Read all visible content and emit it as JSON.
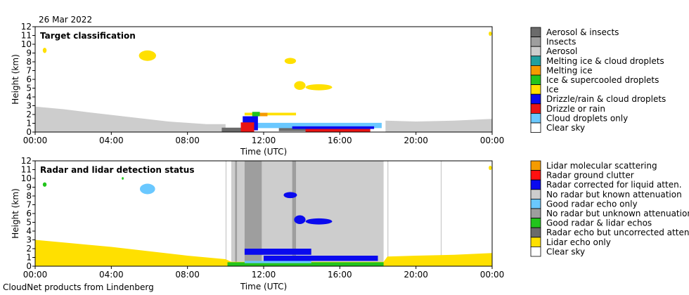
{
  "date_label": "26 Mar 2022",
  "footer": "CloudNet products from Lindenberg",
  "colors": {
    "aerosol_insects": "#6b6b6b",
    "insects": "#9e9e9e",
    "aerosol": "#cdcdcd",
    "melting_ice_cloud": "#20a0a0",
    "melting_ice": "#f49b00",
    "ice_supercooled": "#22c41c",
    "ice": "#ffe000",
    "drizzle_cloud": "#0a0aee",
    "drizzle_rain": "#e81414",
    "cloud_droplets": "#6ac8ff",
    "clear": "#ffffff",
    "lidar_molecular": "#f49b00",
    "radar_ground_clutter": "#ff1010",
    "radar_corrected": "#0a0aee",
    "no_radar_known": "#cdcdcd",
    "good_radar_only": "#6ac8ff",
    "no_radar_unknown": "#9e9e9e",
    "good_radar_lidar": "#22c41c",
    "radar_uncorrected": "#6b6b6b",
    "lidar_only": "#ffe000"
  },
  "chart_data": [
    {
      "type": "heatmap",
      "title": "Target classification",
      "xlabel": "Time (UTC)",
      "ylabel": "Height (km)",
      "xlim": [
        0,
        24
      ],
      "ylim": [
        0,
        12
      ],
      "x_ticks": [
        "00:00",
        "04:00",
        "08:00",
        "12:00",
        "16:00",
        "20:00",
        "00:00"
      ],
      "y_ticks": [
        "0",
        "1",
        "2",
        "3",
        "4",
        "5",
        "6",
        "7",
        "8",
        "9",
        "10",
        "11",
        "12"
      ],
      "legend": [
        {
          "label": "Aerosol & insects",
          "color_key": "aerosol_insects"
        },
        {
          "label": "Insects",
          "color_key": "insects"
        },
        {
          "label": "Aerosol",
          "color_key": "aerosol"
        },
        {
          "label": "Melting ice & cloud droplets",
          "color_key": "melting_ice_cloud"
        },
        {
          "label": "Melting ice",
          "color_key": "melting_ice"
        },
        {
          "label": "Ice & supercooled droplets",
          "color_key": "ice_supercooled"
        },
        {
          "label": "Ice",
          "color_key": "ice"
        },
        {
          "label": "Drizzle/rain & cloud droplets",
          "color_key": "drizzle_cloud"
        },
        {
          "label": "Drizzle or rain",
          "color_key": "drizzle_rain"
        },
        {
          "label": "Cloud droplets only",
          "color_key": "cloud_droplets"
        },
        {
          "label": "Clear sky",
          "color_key": "clear"
        }
      ],
      "regions": [
        {
          "color_key": "aerosol",
          "shape": "poly",
          "points": [
            [
              0,
              0
            ],
            [
              0,
              2.9
            ],
            [
              1.5,
              2.6
            ],
            [
              3,
              2.2
            ],
            [
              5,
              1.7
            ],
            [
              7,
              1.2
            ],
            [
              9,
              0.9
            ],
            [
              10,
              0.9
            ],
            [
              10,
              0
            ],
            [
              0,
              0
            ]
          ]
        },
        {
          "color_key": "aerosol",
          "shape": "poly",
          "points": [
            [
              18.4,
              0
            ],
            [
              18.4,
              1.3
            ],
            [
              20,
              1.2
            ],
            [
              22,
              1.3
            ],
            [
              24,
              1.5
            ],
            [
              24,
              0
            ],
            [
              18.4,
              0
            ]
          ]
        },
        {
          "color_key": "aerosol_insects",
          "shape": "rect",
          "t0": 9.8,
          "t1": 11.2,
          "h0": 0,
          "h1": 0.5
        },
        {
          "color_key": "aerosol_insects",
          "shape": "rect",
          "t0": 12.8,
          "t1": 14.8,
          "h0": 0.1,
          "h1": 0.6
        },
        {
          "color_key": "cloud_droplets",
          "shape": "rect",
          "t0": 11.0,
          "t1": 18.2,
          "h0": 0.45,
          "h1": 1.05
        },
        {
          "color_key": "drizzle_cloud",
          "shape": "rect",
          "t0": 10.9,
          "t1": 11.7,
          "h0": 0.2,
          "h1": 1.8
        },
        {
          "color_key": "drizzle_rain",
          "shape": "rect",
          "t0": 10.8,
          "t1": 11.5,
          "h0": 0,
          "h1": 1.1
        },
        {
          "color_key": "drizzle_rain",
          "shape": "rect",
          "t0": 14.2,
          "t1": 17.6,
          "h0": 0,
          "h1": 0.45
        },
        {
          "color_key": "drizzle_cloud",
          "shape": "rect",
          "t0": 13.5,
          "t1": 17.8,
          "h0": 0.35,
          "h1": 0.65
        },
        {
          "color_key": "ice",
          "shape": "rect",
          "t0": 11.0,
          "t1": 13.7,
          "h0": 1.9,
          "h1": 2.2
        },
        {
          "color_key": "ice_supercooled",
          "shape": "rect",
          "t0": 11.4,
          "t1": 11.8,
          "h0": 1.8,
          "h1": 2.3
        },
        {
          "color_key": "melting_ice",
          "shape": "rect",
          "t0": 11.8,
          "t1": 12.2,
          "h0": 1.8,
          "h1": 2.2
        },
        {
          "color_key": "ice",
          "shape": "ellipse",
          "t": 5.9,
          "h": 8.7,
          "rt": 0.45,
          "rh": 0.6
        },
        {
          "color_key": "ice",
          "shape": "ellipse",
          "t": 13.4,
          "h": 8.1,
          "rt": 0.3,
          "rh": 0.35
        },
        {
          "color_key": "ice",
          "shape": "ellipse",
          "t": 13.9,
          "h": 5.3,
          "rt": 0.3,
          "rh": 0.5
        },
        {
          "color_key": "ice",
          "shape": "ellipse",
          "t": 14.9,
          "h": 5.1,
          "rt": 0.7,
          "rh": 0.35
        },
        {
          "color_key": "ice",
          "shape": "ellipse",
          "t": 0.5,
          "h": 9.3,
          "rt": 0.1,
          "rh": 0.3
        },
        {
          "color_key": "ice",
          "shape": "ellipse",
          "t": 23.9,
          "h": 11.2,
          "rt": 0.08,
          "rh": 0.25
        }
      ]
    },
    {
      "type": "heatmap",
      "title": "Radar and lidar detection status",
      "xlabel": "Time (UTC)",
      "ylabel": "Height (km)",
      "xlim": [
        0,
        24
      ],
      "ylim": [
        0,
        12
      ],
      "x_ticks": [
        "00:00",
        "04:00",
        "08:00",
        "12:00",
        "16:00",
        "20:00",
        "00:00"
      ],
      "y_ticks": [
        "0",
        "1",
        "2",
        "3",
        "4",
        "5",
        "6",
        "7",
        "8",
        "9",
        "10",
        "11",
        "12"
      ],
      "legend": [
        {
          "label": "Lidar molecular scattering",
          "color_key": "lidar_molecular"
        },
        {
          "label": "Radar ground clutter",
          "color_key": "radar_ground_clutter"
        },
        {
          "label": "Radar corrected for liquid atten.",
          "color_key": "radar_corrected"
        },
        {
          "label": "No radar but known attenuation",
          "color_key": "no_radar_known"
        },
        {
          "label": "Good radar echo only",
          "color_key": "good_radar_only"
        },
        {
          "label": "No radar but unknown attenuation",
          "color_key": "no_radar_unknown"
        },
        {
          "label": "Good radar & lidar echos",
          "color_key": "good_radar_lidar"
        },
        {
          "label": "Radar echo but uncorrected atten.",
          "color_key": "radar_uncorrected"
        },
        {
          "label": "Lidar echo only",
          "color_key": "lidar_only"
        },
        {
          "label": "Clear sky",
          "color_key": "clear"
        }
      ],
      "regions": [
        {
          "color_key": "no_radar_known",
          "shape": "rect",
          "t0": 10.3,
          "t1": 18.3,
          "h0": 0.5,
          "h1": 12
        },
        {
          "color_key": "no_radar_unknown",
          "shape": "rect",
          "t0": 11.0,
          "t1": 11.9,
          "h0": 0.5,
          "h1": 12
        },
        {
          "color_key": "no_radar_unknown",
          "shape": "rect",
          "t0": 13.5,
          "t1": 13.7,
          "h0": 0.5,
          "h1": 12
        },
        {
          "color_key": "no_radar_unknown",
          "shape": "rect",
          "t0": 10.5,
          "t1": 10.6,
          "h0": 0.5,
          "h1": 12
        },
        {
          "color_key": "no_radar_known",
          "shape": "rect",
          "t0": 10.0,
          "t1": 10.05,
          "h0": 0.5,
          "h1": 12
        },
        {
          "color_key": "no_radar_known",
          "shape": "rect",
          "t0": 18.5,
          "t1": 18.55,
          "h0": 0.5,
          "h1": 12
        },
        {
          "color_key": "no_radar_known",
          "shape": "rect",
          "t0": 21.3,
          "t1": 21.35,
          "h0": 0.5,
          "h1": 12
        },
        {
          "color_key": "lidar_only",
          "shape": "poly",
          "points": [
            [
              0,
              0
            ],
            [
              0,
              3.0
            ],
            [
              2,
              2.6
            ],
            [
              4,
              2.2
            ],
            [
              6,
              1.7
            ],
            [
              8,
              1.2
            ],
            [
              10,
              0.8
            ],
            [
              10.3,
              0.5
            ],
            [
              18.3,
              0.5
            ],
            [
              18.5,
              1.1
            ],
            [
              20,
              1.2
            ],
            [
              22,
              1.3
            ],
            [
              24,
              1.5
            ],
            [
              24,
              0
            ],
            [
              0,
              0
            ]
          ]
        },
        {
          "color_key": "good_radar_lidar",
          "shape": "rect",
          "t0": 10.1,
          "t1": 18.3,
          "h0": 0.0,
          "h1": 0.45
        },
        {
          "color_key": "radar_corrected",
          "shape": "rect",
          "t0": 11.0,
          "t1": 14.5,
          "h0": 1.3,
          "h1": 2.0
        },
        {
          "color_key": "radar_corrected",
          "shape": "rect",
          "t0": 12.0,
          "t1": 18.0,
          "h0": 0.6,
          "h1": 1.2
        },
        {
          "color_key": "good_radar_only",
          "shape": "rect",
          "t0": 11.0,
          "t1": 14.5,
          "h0": 0.35,
          "h1": 0.6
        },
        {
          "color_key": "radar_corrected",
          "shape": "ellipse",
          "t": 13.4,
          "h": 8.1,
          "rt": 0.35,
          "rh": 0.35
        },
        {
          "color_key": "radar_corrected",
          "shape": "ellipse",
          "t": 13.9,
          "h": 5.3,
          "rt": 0.3,
          "rh": 0.5
        },
        {
          "color_key": "radar_corrected",
          "shape": "ellipse",
          "t": 14.9,
          "h": 5.1,
          "rt": 0.7,
          "rh": 0.35
        },
        {
          "color_key": "good_radar_only",
          "shape": "ellipse",
          "t": 5.9,
          "h": 8.8,
          "rt": 0.4,
          "rh": 0.6
        },
        {
          "color_key": "good_radar_lidar",
          "shape": "ellipse",
          "t": 0.5,
          "h": 9.3,
          "rt": 0.1,
          "rh": 0.25
        },
        {
          "color_key": "good_radar_lidar",
          "shape": "ellipse",
          "t": 4.6,
          "h": 10.0,
          "rt": 0.05,
          "rh": 0.15
        },
        {
          "color_key": "lidar_only",
          "shape": "ellipse",
          "t": 23.9,
          "h": 11.2,
          "rt": 0.08,
          "rh": 0.25
        }
      ]
    }
  ]
}
